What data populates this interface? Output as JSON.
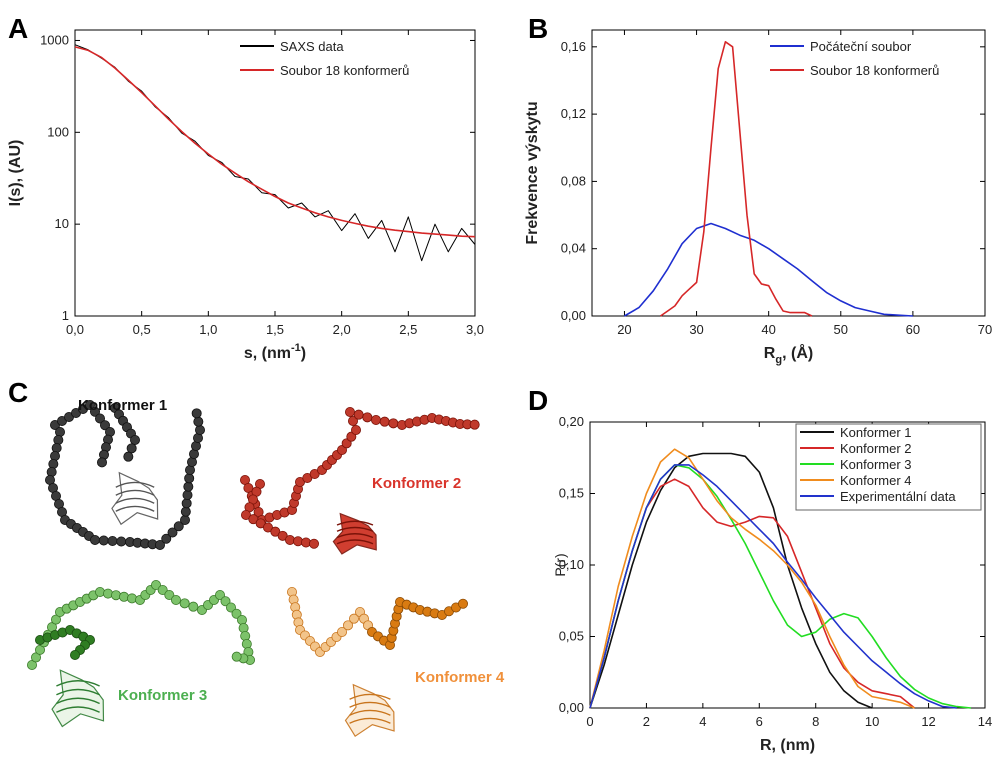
{
  "chart_data": [
    {
      "type": "line",
      "panel": "A",
      "log_y": true,
      "legend": "upper right",
      "xlabel": {
        "text": "s, (nm",
        "sup": "-1",
        "tail": ")"
      },
      "ylabel": "I(s), (AU)",
      "xlim": [
        0,
        3
      ],
      "ylim": [
        1,
        1300
      ],
      "xticks": [
        {
          "value": 0,
          "label": "0,0"
        },
        {
          "value": 0.5,
          "label": "0,5"
        },
        {
          "value": 1,
          "label": "1,0"
        },
        {
          "value": 1.5,
          "label": "1,5"
        },
        {
          "value": 2,
          "label": "2,0"
        },
        {
          "value": 2.5,
          "label": "2,5"
        },
        {
          "value": 3,
          "label": "3,0"
        }
      ],
      "yticks": [
        1,
        10,
        100,
        1000
      ],
      "x": [
        0,
        0.1,
        0.2,
        0.3,
        0.4,
        0.5,
        0.6,
        0.7,
        0.8,
        0.9,
        1.0,
        1.1,
        1.2,
        1.3,
        1.4,
        1.5,
        1.6,
        1.7,
        1.8,
        1.9,
        2.0,
        2.1,
        2.2,
        2.3,
        2.4,
        2.5,
        2.6,
        2.7,
        2.8,
        2.9,
        3.0
      ],
      "series": [
        {
          "name": "SAXS data",
          "color": "#000000",
          "values": [
            900,
            790,
            640,
            510,
            360,
            280,
            190,
            145,
            98,
            80,
            56,
            47,
            33,
            31,
            22,
            21,
            15,
            17,
            12,
            14,
            8.5,
            13,
            7,
            11,
            5,
            12,
            4,
            10,
            5,
            9,
            6
          ]
        },
        {
          "name": "Soubor 18 konformerů",
          "color": "#d62728",
          "values": [
            850,
            780,
            650,
            500,
            370,
            270,
            195,
            140,
            102,
            76,
            58,
            45,
            36,
            29,
            24,
            20,
            17,
            15,
            13.3,
            12,
            11,
            10.2,
            9.5,
            9,
            8.6,
            8.3,
            8,
            7.8,
            7.6,
            7.4,
            7.3
          ]
        }
      ]
    },
    {
      "type": "line",
      "panel": "B",
      "log_y": false,
      "legend": "upper right",
      "xlabel": {
        "text": "R",
        "sub": "g",
        "tail": ", (Å)"
      },
      "ylabel": "Frekvence výskytu",
      "xlim": [
        15.5,
        70
      ],
      "ylim": [
        0,
        0.17
      ],
      "xticks": [
        20,
        30,
        40,
        50,
        60,
        70
      ],
      "yticks": [
        {
          "value": 0,
          "label": "0,00"
        },
        {
          "value": 0.04,
          "label": "0,04"
        },
        {
          "value": 0.08,
          "label": "0,08"
        },
        {
          "value": 0.12,
          "label": "0,12"
        },
        {
          "value": 0.16,
          "label": "0,16"
        }
      ],
      "series": [
        {
          "name": "Počáteční soubor",
          "color": "#1f2fd0",
          "x": [
            20,
            22,
            24,
            26,
            28,
            30,
            32,
            34,
            36,
            38,
            40,
            42,
            44,
            46,
            48,
            50,
            52,
            54,
            56,
            58,
            60
          ],
          "values": [
            0,
            0.005,
            0.015,
            0.028,
            0.043,
            0.052,
            0.055,
            0.052,
            0.048,
            0.045,
            0.04,
            0.034,
            0.028,
            0.021,
            0.014,
            0.009,
            0.005,
            0.003,
            0.001,
            0.0005,
            0
          ]
        },
        {
          "name": "Soubor 18 konformerů",
          "color": "#d62728",
          "x": [
            25,
            26,
            27,
            28,
            29,
            30,
            31,
            32,
            33,
            34,
            35,
            36,
            37,
            38,
            39,
            40,
            41,
            42,
            43,
            44,
            45,
            46
          ],
          "values": [
            0,
            0.003,
            0.006,
            0.012,
            0.016,
            0.02,
            0.05,
            0.1,
            0.147,
            0.163,
            0.16,
            0.11,
            0.06,
            0.025,
            0.019,
            0.018,
            0.01,
            0.003,
            0.002,
            0.002,
            0.002,
            0
          ]
        }
      ]
    },
    {
      "type": "line",
      "panel": "D",
      "log_y": false,
      "legend": "upper right",
      "xlabel": "R, (nm)",
      "ylabel": "P(r)",
      "xlim": [
        0,
        14
      ],
      "ylim": [
        0,
        0.2
      ],
      "xticks": [
        0,
        2,
        4,
        6,
        8,
        10,
        12,
        14
      ],
      "yticks": [
        {
          "value": 0,
          "label": "0,00"
        },
        {
          "value": 0.05,
          "label": "0,05"
        },
        {
          "value": 0.1,
          "label": "0,10"
        },
        {
          "value": 0.15,
          "label": "0,15"
        },
        {
          "value": 0.2,
          "label": "0,20"
        }
      ],
      "x": [
        0,
        0.5,
        1,
        1.5,
        2,
        2.5,
        3,
        3.5,
        4,
        4.5,
        5,
        5.5,
        6,
        6.5,
        7,
        7.5,
        8,
        8.5,
        9,
        9.5,
        10,
        10.5,
        11,
        11.5,
        12,
        12.5,
        13,
        13.5
      ],
      "series": [
        {
          "name": "Konformer 1",
          "color": "#111111",
          "values": [
            0,
            0.03,
            0.065,
            0.1,
            0.13,
            0.152,
            0.168,
            0.176,
            0.178,
            0.178,
            0.178,
            0.176,
            0.165,
            0.14,
            0.1,
            0.07,
            0.045,
            0.025,
            0.012,
            0.004,
            0,
            null,
            null,
            null,
            null,
            null,
            null,
            null
          ]
        },
        {
          "name": "Konformer 2",
          "color": "#d62728",
          "values": [
            0,
            0.035,
            0.075,
            0.11,
            0.14,
            0.155,
            0.16,
            0.155,
            0.14,
            0.13,
            0.127,
            0.13,
            0.134,
            0.133,
            0.12,
            0.095,
            0.07,
            0.045,
            0.028,
            0.018,
            0.012,
            0.01,
            0.008,
            0,
            null,
            null,
            null,
            null
          ]
        },
        {
          "name": "Konformer 3",
          "color": "#22dd22",
          "values": [
            0,
            0.035,
            0.075,
            0.11,
            0.14,
            0.16,
            0.17,
            0.168,
            0.16,
            0.148,
            0.132,
            0.115,
            0.095,
            0.075,
            0.058,
            0.05,
            0.053,
            0.062,
            0.066,
            0.063,
            0.05,
            0.035,
            0.022,
            0.013,
            0.007,
            0.003,
            0.001,
            0
          ]
        },
        {
          "name": "Konformer 4",
          "color": "#f08c1e",
          "values": [
            0,
            0.04,
            0.085,
            0.12,
            0.15,
            0.172,
            0.181,
            0.175,
            0.16,
            0.145,
            0.133,
            0.125,
            0.118,
            0.11,
            0.1,
            0.088,
            0.072,
            0.05,
            0.03,
            0.015,
            0.008,
            0.006,
            0.004,
            0,
            null,
            null,
            null,
            null
          ]
        },
        {
          "name": "Experimentální data",
          "color": "#2233cc",
          "values": [
            0,
            0.035,
            0.075,
            0.11,
            0.14,
            0.16,
            0.17,
            0.17,
            0.163,
            0.155,
            0.145,
            0.135,
            0.125,
            0.115,
            0.102,
            0.09,
            0.077,
            0.065,
            0.053,
            0.043,
            0.033,
            0.025,
            0.017,
            0.01,
            0.005,
            0.001,
            0,
            null
          ]
        }
      ]
    }
  ],
  "illustration": {
    "panel": "C",
    "labels": [
      "Konformer 1",
      "Konformer 2",
      "Konformer 3",
      "Konformer 4"
    ]
  }
}
